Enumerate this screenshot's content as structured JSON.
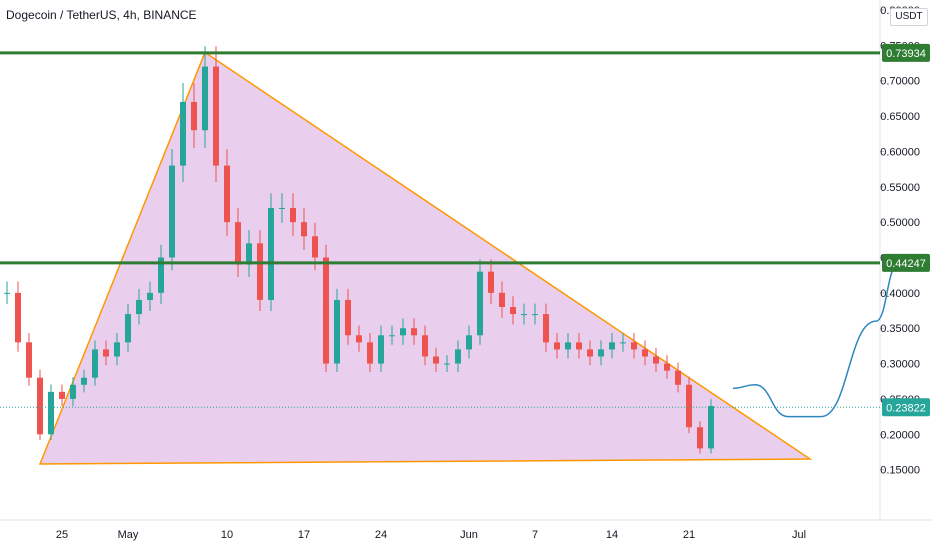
{
  "chart_data": {
    "type": "candlestick",
    "title": "Dogecoin / TetherUS, 4h, BINANCE",
    "unit": "USDT",
    "ylim": [
      0.1,
      0.8
    ],
    "y_ticks": [
      "0.80000",
      "0.75000",
      "0.70000",
      "0.65000",
      "0.60000",
      "0.55000",
      "0.50000",
      "0.45000",
      "0.40000",
      "0.35000",
      "0.30000",
      "0.25000",
      "0.20000",
      "0.15000"
    ],
    "x_ticks": [
      "25",
      "May",
      "10",
      "17",
      "24",
      "Jun",
      "7",
      "14",
      "21",
      "Jul"
    ],
    "horizontal_levels": [
      {
        "value": 0.73934,
        "label": "0.73934",
        "color": "#2e7d32"
      },
      {
        "value": 0.44247,
        "label": "0.44247",
        "color": "#2e7d32"
      }
    ],
    "current_price": {
      "value": 0.23822,
      "label": "0.23822",
      "color": "#26a69a"
    },
    "triangle": {
      "points": [
        {
          "date": "Apr 23",
          "price": 0.158
        },
        {
          "date": "May 8",
          "price": 0.74
        },
        {
          "date": "Jul 2",
          "price": 0.165
        }
      ],
      "fill": "#e1bee7",
      "stroke": "#ff9800"
    },
    "projection_path": [
      {
        "date": "Jun 25",
        "price": 0.265
      },
      {
        "date": "Jun 27",
        "price": 0.27
      },
      {
        "date": "Jun 30",
        "price": 0.225
      },
      {
        "date": "Jul 3",
        "price": 0.225
      },
      {
        "date": "Jul 8",
        "price": 0.36
      },
      {
        "date": "Jul 10",
        "price": 0.44
      }
    ],
    "ohlc_approx": [
      {
        "date": "Apr 20",
        "price": 0.4
      },
      {
        "date": "Apr 21",
        "price": 0.33
      },
      {
        "date": "Apr 22",
        "price": 0.28
      },
      {
        "date": "Apr 23",
        "price": 0.2
      },
      {
        "date": "Apr 24",
        "price": 0.26
      },
      {
        "date": "Apr 25",
        "price": 0.25
      },
      {
        "date": "Apr 26",
        "price": 0.27
      },
      {
        "date": "Apr 27",
        "price": 0.28
      },
      {
        "date": "Apr 28",
        "price": 0.32
      },
      {
        "date": "Apr 29",
        "price": 0.31
      },
      {
        "date": "Apr 30",
        "price": 0.33
      },
      {
        "date": "May 1",
        "price": 0.37
      },
      {
        "date": "May 2",
        "price": 0.39
      },
      {
        "date": "May 3",
        "price": 0.4
      },
      {
        "date": "May 4",
        "price": 0.45
      },
      {
        "date": "May 5",
        "price": 0.58
      },
      {
        "date": "May 6",
        "price": 0.67
      },
      {
        "date": "May 7",
        "price": 0.63
      },
      {
        "date": "May 8",
        "price": 0.72
      },
      {
        "date": "May 9",
        "price": 0.58
      },
      {
        "date": "May 10",
        "price": 0.5
      },
      {
        "date": "May 11",
        "price": 0.44
      },
      {
        "date": "May 12",
        "price": 0.47
      },
      {
        "date": "May 13",
        "price": 0.39
      },
      {
        "date": "May 14",
        "price": 0.52
      },
      {
        "date": "May 15",
        "price": 0.52
      },
      {
        "date": "May 16",
        "price": 0.5
      },
      {
        "date": "May 17",
        "price": 0.48
      },
      {
        "date": "May 18",
        "price": 0.45
      },
      {
        "date": "May 19",
        "price": 0.3
      },
      {
        "date": "May 20",
        "price": 0.39
      },
      {
        "date": "May 21",
        "price": 0.34
      },
      {
        "date": "May 22",
        "price": 0.33
      },
      {
        "date": "May 23",
        "price": 0.3
      },
      {
        "date": "May 24",
        "price": 0.34
      },
      {
        "date": "May 25",
        "price": 0.34
      },
      {
        "date": "May 26",
        "price": 0.35
      },
      {
        "date": "May 27",
        "price": 0.34
      },
      {
        "date": "May 28",
        "price": 0.31
      },
      {
        "date": "May 29",
        "price": 0.3
      },
      {
        "date": "May 30",
        "price": 0.3
      },
      {
        "date": "May 31",
        "price": 0.32
      },
      {
        "date": "Jun 1",
        "price": 0.34
      },
      {
        "date": "Jun 2",
        "price": 0.43
      },
      {
        "date": "Jun 3",
        "price": 0.4
      },
      {
        "date": "Jun 4",
        "price": 0.38
      },
      {
        "date": "Jun 5",
        "price": 0.37
      },
      {
        "date": "Jun 6",
        "price": 0.37
      },
      {
        "date": "Jun 7",
        "price": 0.37
      },
      {
        "date": "Jun 8",
        "price": 0.33
      },
      {
        "date": "Jun 9",
        "price": 0.32
      },
      {
        "date": "Jun 10",
        "price": 0.33
      },
      {
        "date": "Jun 11",
        "price": 0.32
      },
      {
        "date": "Jun 12",
        "price": 0.31
      },
      {
        "date": "Jun 13",
        "price": 0.32
      },
      {
        "date": "Jun 14",
        "price": 0.33
      },
      {
        "date": "Jun 15",
        "price": 0.33
      },
      {
        "date": "Jun 16",
        "price": 0.32
      },
      {
        "date": "Jun 17",
        "price": 0.31
      },
      {
        "date": "Jun 18",
        "price": 0.3
      },
      {
        "date": "Jun 19",
        "price": 0.29
      },
      {
        "date": "Jun 20",
        "price": 0.27
      },
      {
        "date": "Jun 21",
        "price": 0.21
      },
      {
        "date": "Jun 22",
        "price": 0.18
      },
      {
        "date": "Jun 23",
        "price": 0.24
      }
    ]
  }
}
